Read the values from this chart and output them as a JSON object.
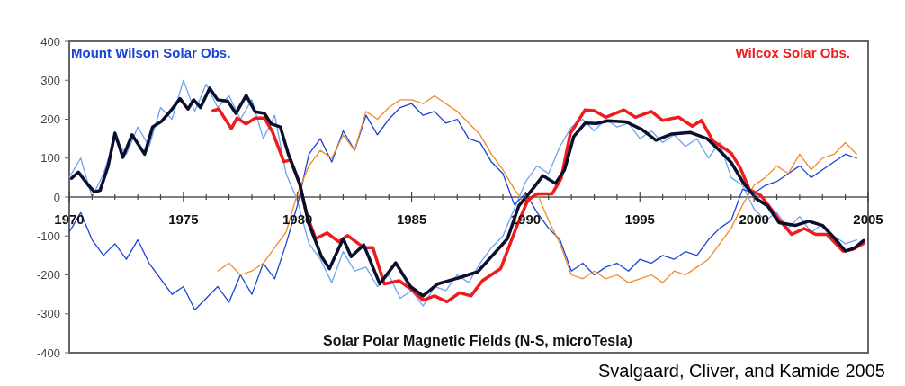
{
  "chart_data": {
    "type": "line",
    "xlabel": "Solar Polar Magnetic Fields (N-S, microTesla)",
    "annotations": [
      "Svalgaard, Cliver, and Kamide 2005"
    ],
    "xlim": [
      1970,
      2005
    ],
    "ylim": [
      -400,
      400
    ],
    "xticks": [
      1970,
      {
        "value": 1971,
        "label": null
      },
      {
        "value": 1972,
        "label": null
      },
      {
        "value": 1973,
        "label": null
      },
      {
        "value": 1974,
        "label": null
      },
      1975,
      {
        "value": 1976,
        "label": null
      },
      {
        "value": 1977,
        "label": null
      },
      {
        "value": 1978,
        "label": null
      },
      {
        "value": 1979,
        "label": null
      },
      1980,
      {
        "value": 1981,
        "label": null
      },
      {
        "value": 1982,
        "label": null
      },
      {
        "value": 1983,
        "label": null
      },
      {
        "value": 1984,
        "label": null
      },
      1985,
      {
        "value": 1986,
        "label": null
      },
      {
        "value": 1987,
        "label": null
      },
      {
        "value": 1988,
        "label": null
      },
      {
        "value": 1989,
        "label": null
      },
      1990,
      {
        "value": 1991,
        "label": null
      },
      {
        "value": 1992,
        "label": null
      },
      {
        "value": 1993,
        "label": null
      },
      {
        "value": 1994,
        "label": null
      },
      1995,
      {
        "value": 1996,
        "label": null
      },
      {
        "value": 1997,
        "label": null
      },
      {
        "value": 1998,
        "label": null
      },
      {
        "value": 1999,
        "label": null
      },
      2000,
      {
        "value": 2001,
        "label": null
      },
      {
        "value": 2002,
        "label": null
      },
      {
        "value": 2003,
        "label": null
      },
      {
        "value": 2004,
        "label": null
      },
      2005
    ],
    "yticks": [
      -400,
      -300,
      -200,
      -100,
      0,
      100,
      200,
      300,
      400
    ],
    "grid": false,
    "legend": "top",
    "marker": "none",
    "line_style": "solid",
    "x": [
      1970,
      1970.5,
      1971,
      1971.5,
      1972,
      1972.5,
      1973,
      1973.5,
      1974,
      1974.5,
      1975,
      1975.5,
      1976,
      1976.5,
      1977,
      1977.5,
      1978,
      1978.5,
      1979,
      1979.5,
      1980,
      1980.5,
      1981,
      1981.5,
      1982,
      1982.5,
      1983,
      1983.5,
      1984,
      1984.5,
      1985,
      1985.5,
      1986,
      1986.5,
      1987,
      1987.5,
      1988,
      1988.5,
      1989,
      1989.5,
      1990,
      1990.5,
      1991,
      1991.5,
      1992,
      1992.5,
      1993,
      1993.5,
      1994,
      1994.5,
      1995,
      1995.5,
      1996,
      1996.5,
      1997,
      1997.5,
      1998,
      1998.5,
      1999,
      1999.5,
      2000,
      2000.5,
      2001,
      2001.5,
      2002,
      2002.5,
      2003,
      2003.5,
      2004,
      2004.5
    ],
    "series": [
      {
        "color": "#6fa3ef",
        "values": [
          50,
          100,
          0,
          60,
          150,
          110,
          180,
          130,
          230,
          200,
          300,
          220,
          290,
          230,
          260,
          200,
          250,
          150,
          210,
          60,
          -10,
          -120,
          -160,
          -220,
          -140,
          -190,
          -180,
          -230,
          -200,
          -260,
          -240,
          -280,
          -230,
          -240,
          -200,
          -220,
          -170,
          -130,
          -100,
          -30,
          40,
          80,
          60,
          130,
          180,
          200,
          170,
          200,
          180,
          190,
          150,
          170,
          140,
          160,
          130,
          150,
          100,
          140,
          50,
          30,
          -30,
          -60,
          -40,
          -80,
          -50,
          -90,
          -70,
          -100,
          -120,
          -110
        ]
      },
      {
        "name": "Mount Wilson Solar Obs.",
        "color": "#1a44d6",
        "values": [
          -90,
          -40,
          -110,
          -150,
          -120,
          -160,
          -110,
          -170,
          -210,
          -250,
          -230,
          -290,
          -260,
          -230,
          -270,
          -200,
          -250,
          -170,
          -210,
          -120,
          -20,
          110,
          150,
          90,
          170,
          120,
          210,
          160,
          200,
          230,
          240,
          210,
          220,
          190,
          200,
          150,
          140,
          90,
          60,
          -20,
          10,
          -40,
          -80,
          -110,
          -190,
          -170,
          -200,
          -180,
          -170,
          -190,
          -160,
          -170,
          -150,
          -160,
          -140,
          -150,
          -110,
          -80,
          -60,
          20,
          10,
          30,
          40,
          60,
          80,
          50,
          70,
          90,
          110,
          100
        ]
      },
      {
        "color": "#f08a2a",
        "values": [
          null,
          null,
          null,
          null,
          null,
          null,
          null,
          null,
          null,
          null,
          null,
          null,
          null,
          -190,
          -170,
          -200,
          -190,
          -170,
          -130,
          -90,
          10,
          80,
          120,
          100,
          160,
          120,
          220,
          200,
          230,
          250,
          250,
          240,
          260,
          240,
          220,
          190,
          160,
          110,
          70,
          20,
          -20,
          10,
          -60,
          -120,
          -200,
          -210,
          -190,
          -210,
          -200,
          -220,
          -210,
          -200,
          -220,
          -190,
          -200,
          -180,
          -160,
          -120,
          -80,
          -20,
          30,
          50,
          80,
          60,
          110,
          70,
          100,
          110,
          140,
          110
        ]
      },
      {
        "name": "Wilcox Solar Obs.",
        "color": "#ee1c1c",
        "x": [
          1976.3,
          1976.55,
          1977.1,
          1977.35,
          1977.75,
          1978.15,
          1978.55,
          1978.9,
          1979.4,
          1979.7,
          1980.1,
          1980.4,
          1980.8,
          1981.3,
          1981.8,
          1982.2,
          1982.9,
          1983.3,
          1983.8,
          1984.45,
          1985,
          1985.5,
          1986,
          1986.55,
          1987.1,
          1987.6,
          1988.1,
          1988.9,
          1989.6,
          1990.1,
          1990.5,
          1991.15,
          1991.55,
          1991.95,
          1992.6,
          1993,
          1993.5,
          1994.3,
          1994.8,
          1995.5,
          1996,
          1996.7,
          1997.3,
          1997.7,
          1998.2,
          1998.6,
          1999,
          1999.4,
          1999.8,
          2000.3,
          2000.7,
          2001.1,
          2001.65,
          2002.2,
          2002.7,
          2003.2,
          2003.9,
          2004.3,
          2004.8
        ],
        "values": [
          222,
          226,
          176,
          203,
          188,
          203,
          203,
          168,
          91,
          95,
          33,
          -45,
          -107,
          -92,
          -115,
          -99,
          -130,
          -130,
          -223,
          -215,
          -238,
          -265,
          -254,
          -269,
          -246,
          -254,
          -215,
          -184,
          -76,
          -7,
          8,
          8,
          47,
          163,
          224,
          222,
          205,
          224,
          205,
          220,
          197,
          205,
          182,
          197,
          144,
          129,
          113,
          75,
          19,
          4,
          -27,
          -58,
          -96,
          -81,
          -96,
          -96,
          -139,
          -135,
          -119
        ]
      },
      {
        "color": "#0a0f2e",
        "x": [
          1970.1,
          1970.4,
          1970.8,
          1971.1,
          1971.35,
          1971.7,
          1972,
          1972.35,
          1972.75,
          1973.3,
          1973.65,
          1974.05,
          1974.45,
          1974.85,
          1975.2,
          1975.45,
          1975.75,
          1976.15,
          1976.5,
          1976.95,
          1977.3,
          1977.75,
          1978.15,
          1978.55,
          1978.85,
          1979.25,
          1979.6,
          1980.1,
          1980.5,
          1981.05,
          1981.4,
          1982,
          1982.35,
          1982.9,
          1983.6,
          1984.3,
          1984.95,
          1985.5,
          1986.15,
          1987.1,
          1987.9,
          1988.5,
          1989.2,
          1989.7,
          1990.35,
          1990.75,
          1991.3,
          1991.7,
          1992.1,
          1992.6,
          1993.1,
          1993.6,
          1994.4,
          1995.1,
          1995.7,
          1996.4,
          1997.2,
          1997.95,
          1998.5,
          1999,
          1999.55,
          2000.1,
          2000.6,
          2001.1,
          2001.8,
          2002.4,
          2003,
          2003.5,
          2004,
          2004.4,
          2004.8
        ],
        "values": [
          48,
          64,
          33,
          13,
          17,
          79,
          164,
          102,
          160,
          110,
          180,
          195,
          222,
          253,
          226,
          250,
          230,
          280,
          250,
          246,
          215,
          261,
          219,
          215,
          188,
          180,
          110,
          33,
          -69,
          -153,
          -184,
          -107,
          -153,
          -123,
          -223,
          -169,
          -230,
          -254,
          -223,
          -207,
          -192,
          -153,
          -107,
          -22,
          24,
          55,
          35,
          70,
          155,
          190,
          189,
          196,
          193,
          173,
          146,
          162,
          166,
          150,
          119,
          89,
          35,
          -4,
          -23,
          -66,
          -73,
          -62,
          -73,
          -104,
          -139,
          -131,
          -112
        ]
      }
    ]
  }
}
